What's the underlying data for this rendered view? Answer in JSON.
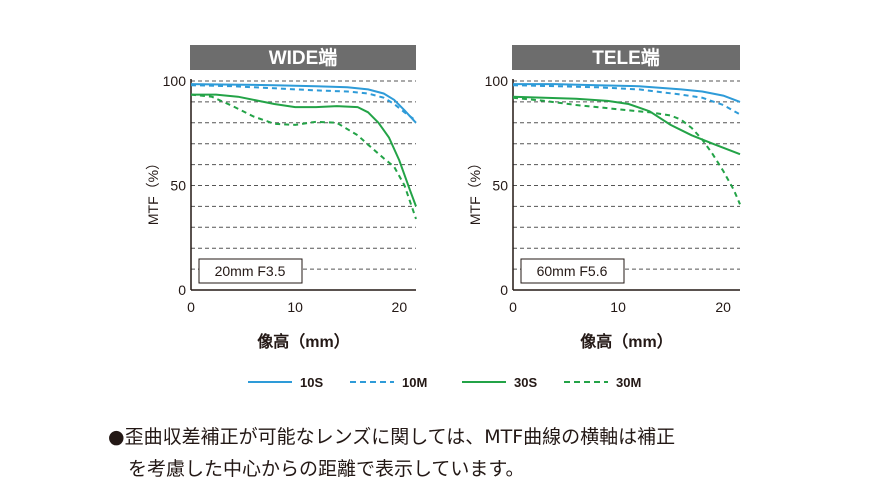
{
  "chart_data": [
    {
      "type": "line",
      "title": "WIDE端",
      "xlabel": "像高（mm）",
      "ylabel": "MTF（%）",
      "xlim": [
        0,
        21.6
      ],
      "ylim": [
        0,
        100
      ],
      "x_ticks": [
        "0",
        "10",
        "20"
      ],
      "y_ticks": [
        "0",
        "50",
        "100"
      ],
      "annotation": "20mm F3.5",
      "series": [
        {
          "name": "10S",
          "color": "#2e9bd8",
          "dash": false,
          "x": [
            0,
            4,
            8,
            12,
            15,
            17,
            18.5,
            19.5,
            20.5,
            21.6
          ],
          "y": [
            98.5,
            98.3,
            98,
            97.5,
            97,
            96,
            94,
            91,
            86,
            80
          ]
        },
        {
          "name": "10M",
          "color": "#2e9bd8",
          "dash": true,
          "x": [
            0,
            4,
            8,
            12,
            15,
            17,
            18.5,
            19.5,
            20.5,
            21.6
          ],
          "y": [
            98,
            97.5,
            96.5,
            95.5,
            95,
            94,
            92,
            89,
            85,
            81
          ]
        },
        {
          "name": "30S",
          "color": "#23a347",
          "dash": false,
          "x": [
            0,
            2.4,
            4.5,
            6.5,
            8,
            10,
            12,
            14,
            16,
            17,
            18,
            19,
            20,
            21,
            21.6
          ],
          "y": [
            93.5,
            93.5,
            92.5,
            90.5,
            89,
            87.5,
            87.5,
            88,
            87.5,
            85,
            80,
            73,
            62,
            48,
            40
          ]
        },
        {
          "name": "30M",
          "color": "#23a347",
          "dash": true,
          "x": [
            0,
            2,
            4,
            6,
            8,
            10,
            12,
            14,
            16,
            17,
            18.5,
            19.5,
            20.5,
            21.6
          ],
          "y": [
            93.5,
            92.5,
            88,
            83,
            79.5,
            79,
            80.5,
            80,
            74,
            69.5,
            63,
            59,
            50,
            34
          ]
        }
      ]
    },
    {
      "type": "line",
      "title": "TELE端",
      "xlabel": "像高（mm）",
      "ylabel": "MTF（%）",
      "xlim": [
        0,
        21.6
      ],
      "ylim": [
        0,
        100
      ],
      "x_ticks": [
        "0",
        "10",
        "20"
      ],
      "y_ticks": [
        "0",
        "50",
        "100"
      ],
      "annotation": "60mm F5.6",
      "series": [
        {
          "name": "10S",
          "color": "#2e9bd8",
          "dash": false,
          "x": [
            0,
            4,
            8,
            12,
            16,
            18,
            20,
            21.6
          ],
          "y": [
            98.5,
            98.5,
            98,
            97.5,
            96,
            95,
            93,
            90
          ]
        },
        {
          "name": "10M",
          "color": "#2e9bd8",
          "dash": true,
          "x": [
            0,
            4,
            8,
            12,
            16,
            18,
            20,
            21.6
          ],
          "y": [
            98,
            97.5,
            97,
            96,
            93.5,
            92,
            88.5,
            84
          ]
        },
        {
          "name": "30S",
          "color": "#23a347",
          "dash": false,
          "x": [
            0,
            3,
            6,
            9,
            11,
            13,
            15,
            17,
            19,
            21.6
          ],
          "y": [
            92.5,
            92,
            91.5,
            90.5,
            89,
            85.5,
            79,
            74,
            70,
            65
          ]
        },
        {
          "name": "30M",
          "color": "#23a347",
          "dash": true,
          "x": [
            0,
            3,
            6,
            9,
            11,
            13,
            15,
            16,
            17,
            18,
            19,
            20,
            21,
            21.6
          ],
          "y": [
            92,
            90.5,
            88.5,
            87,
            86,
            85,
            83.5,
            81.5,
            77.5,
            72,
            65,
            57,
            48,
            41
          ]
        }
      ]
    }
  ],
  "legend": [
    {
      "label": "10S",
      "color": "#2e9bd8",
      "dash": false
    },
    {
      "label": "10M",
      "color": "#2e9bd8",
      "dash": true
    },
    {
      "label": "30S",
      "color": "#23a347",
      "dash": false
    },
    {
      "label": "30M",
      "color": "#23a347",
      "dash": true
    }
  ],
  "notes": {
    "line1": "●歪曲収差補正が可能なレンズに関しては、MTF曲線の横軸は補正",
    "line2": "を考慮した中心からの距離で表示しています。"
  }
}
